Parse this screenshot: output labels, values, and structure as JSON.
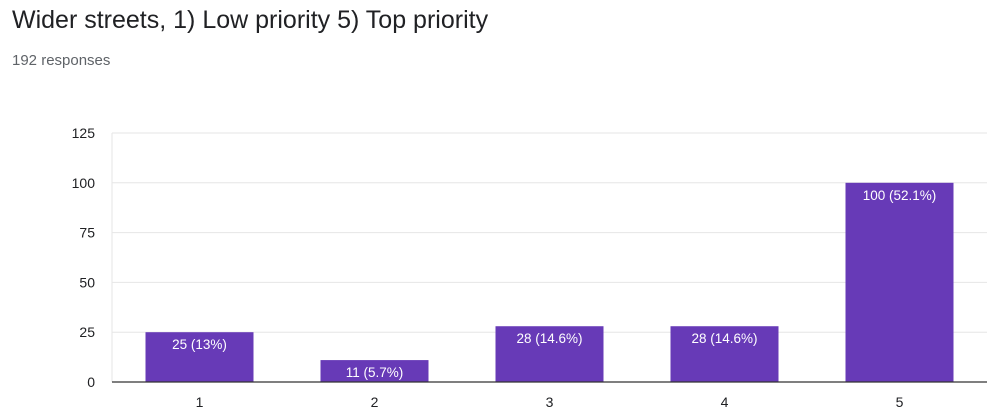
{
  "header": {
    "title": "Wider streets, 1) Low priority 5) Top priority",
    "responses": "192 responses"
  },
  "chart_data": {
    "type": "bar",
    "categories": [
      "1",
      "2",
      "3",
      "4",
      "5"
    ],
    "values": [
      25,
      11,
      28,
      28,
      100
    ],
    "labels": [
      "25 (13%)",
      "11 (5.7%)",
      "28 (14.6%)",
      "28 (14.6%)",
      "100 (52.1%)"
    ],
    "ylim": [
      0,
      125
    ],
    "yticks": [
      "0",
      "25",
      "50",
      "75",
      "100",
      "125"
    ],
    "grid": true,
    "legend": "none",
    "bar_color": "#673ab7"
  }
}
